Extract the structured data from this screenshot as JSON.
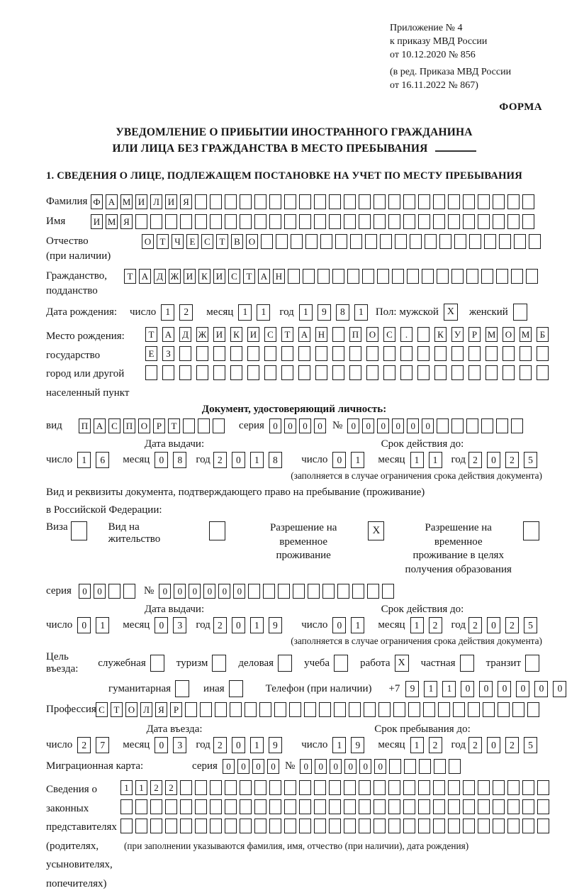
{
  "header": {
    "appendix_line1": "Приложение № 4",
    "appendix_line2": "к приказу МВД России",
    "appendix_line3": "от 10.12.2020 № 856",
    "amendment_line1": "(в ред. Приказа МВД России",
    "amendment_line2": "от 16.11.2022 № 867)",
    "forma": "ФОРМА"
  },
  "title": {
    "line1": "УВЕДОМЛЕНИЕ О ПРИБЫТИИ ИНОСТРАННОГО ГРАЖДАНИНА",
    "line2": "ИЛИ ЛИЦА БЕЗ ГРАЖДАНСТВА В МЕСТО ПРЕБЫВАНИЯ"
  },
  "section1_heading": "1. СВЕДЕНИЯ О ЛИЦЕ, ПОДЛЕЖАЩЕМ ПОСТАНОВКЕ НА УЧЕТ ПО МЕСТУ ПРЕБЫВАНИЯ",
  "labels": {
    "day": "число",
    "month": "месяц",
    "year": "год",
    "series": "серия",
    "number": "№"
  },
  "surname": {
    "label": "Фамилия",
    "cells": {
      "count": 30,
      "value": "ФАМИЛИЯ"
    }
  },
  "firstname": {
    "label": "Имя",
    "cells": {
      "count": 30,
      "value": "ИМЯ"
    }
  },
  "patronymic": {
    "label1": "Отчество",
    "label2": "(при наличии)",
    "cells": {
      "count": 27,
      "value": "ОТЧЕСТВО"
    }
  },
  "citizenship": {
    "label1": "Гражданство,",
    "label2": "подданство",
    "cells": {
      "count": 28,
      "value": "ТАДЖИКИСТАН"
    }
  },
  "birth_date": {
    "label": "Дата рождения:",
    "day": {
      "count": 2,
      "value": "12"
    },
    "month": {
      "count": 2,
      "value": "11"
    },
    "year": {
      "count": 4,
      "value": "1981"
    },
    "sex_label": "Пол: мужской",
    "male_box": {
      "count": 1,
      "value": "X"
    },
    "female_label": "женский",
    "female_box": {
      "count": 1,
      "value": ""
    }
  },
  "birth_place": {
    "label1": "Место рождения:",
    "label2": "государство",
    "label3": "город или другой",
    "label4": "населенный пункт",
    "row1": {
      "count": 24,
      "value": "ТАДЖИКИСТАН ПОС. КУРМОМБ"
    },
    "row2": {
      "count": 24,
      "value": "ЕЗ"
    },
    "row3": {
      "count": 24,
      "value": ""
    }
  },
  "identity_doc": {
    "heading": "Документ, удостоверяющий личность:",
    "type_label": "вид",
    "type": {
      "count": 10,
      "value": "ПАСПОРТ"
    },
    "series": {
      "count": 4,
      "value": "0000"
    },
    "number": {
      "count": 12,
      "value": "000000"
    },
    "issue_heading": "Дата выдачи:",
    "valid_heading": "Срок действия до:",
    "issue_day": {
      "count": 2,
      "value": "16"
    },
    "issue_month": {
      "count": 2,
      "value": "08"
    },
    "issue_year": {
      "count": 4,
      "value": "2018"
    },
    "valid_day": {
      "count": 2,
      "value": "01"
    },
    "valid_month": {
      "count": 2,
      "value": "11"
    },
    "valid_year": {
      "count": 4,
      "value": "2025"
    },
    "note": "(заполняется в случае ограничения срока действия документа)"
  },
  "residence_doc": {
    "line1": "Вид и реквизиты документа, подтверждающего право на пребывание (проживание)",
    "line2": "в Российской Федерации:",
    "visa_label": "Виза",
    "visa_box": {
      "count": 1,
      "value": ""
    },
    "permit_label": "Вид на жительство",
    "permit_box": {
      "count": 1,
      "value": ""
    },
    "temp_label1": "Разрешение на временное",
    "temp_label2": "проживание",
    "temp_box": {
      "count": 1,
      "value": "X"
    },
    "edu_label1": "Разрешение на временное",
    "edu_label2": "проживание в целях",
    "edu_label3": "получения образования",
    "edu_box": {
      "count": 1,
      "value": ""
    },
    "series": {
      "count": 4,
      "value": "00"
    },
    "number": {
      "count": 16,
      "value": "000000"
    },
    "issue_heading": "Дата выдачи:",
    "valid_heading": "Срок действия до:",
    "issue_day": {
      "count": 2,
      "value": "01"
    },
    "issue_month": {
      "count": 2,
      "value": "03"
    },
    "issue_year": {
      "count": 4,
      "value": "2019"
    },
    "valid_day": {
      "count": 2,
      "value": "01"
    },
    "valid_month": {
      "count": 2,
      "value": "12"
    },
    "valid_year": {
      "count": 4,
      "value": "2025"
    },
    "note": "(заполняется в случае ограничения срока действия документа)"
  },
  "purpose": {
    "label": "Цель въезда:",
    "official_label": "служебная",
    "official_box": {
      "count": 1,
      "value": ""
    },
    "tourism_label": "туризм",
    "tourism_box": {
      "count": 1,
      "value": ""
    },
    "business_label": "деловая",
    "business_box": {
      "count": 1,
      "value": ""
    },
    "study_label": "учеба",
    "study_box": {
      "count": 1,
      "value": ""
    },
    "work_label": "работа",
    "work_box": {
      "count": 1,
      "value": "X"
    },
    "private_label": "частная",
    "private_box": {
      "count": 1,
      "value": ""
    },
    "transit_label": "транзит",
    "transit_box": {
      "count": 1,
      "value": ""
    },
    "humanitarian_label": "гуманитарная",
    "humanitarian_box": {
      "count": 1,
      "value": ""
    },
    "other_label": "иная",
    "other_box": {
      "count": 1,
      "value": ""
    },
    "phone_label": "Телефон (при наличии)",
    "phone_prefix": "+7",
    "phone": {
      "count": 10,
      "value": "911000000"
    }
  },
  "profession": {
    "label": "Профессия",
    "cells": {
      "count": 30,
      "value": "СТОЛЯР"
    }
  },
  "entry": {
    "date_heading": "Дата въезда:",
    "stay_heading": "Срок пребывания до:",
    "entry_day": {
      "count": 2,
      "value": "27"
    },
    "entry_month": {
      "count": 2,
      "value": "03"
    },
    "entry_year": {
      "count": 4,
      "value": "2019"
    },
    "stay_day": {
      "count": 2,
      "value": "19"
    },
    "stay_month": {
      "count": 2,
      "value": "12"
    },
    "stay_year": {
      "count": 4,
      "value": "2025"
    }
  },
  "migration_card": {
    "label": "Миграционная карта:",
    "series": {
      "count": 4,
      "value": "0000"
    },
    "number": {
      "count": 11,
      "value": "000000"
    }
  },
  "guardians": {
    "label1": "Сведения о",
    "label2": "законных",
    "label3": "представителях",
    "label4": "(родителях,",
    "label5": "усыновителях,",
    "label6": "попечителях)",
    "row1": {
      "count": 29,
      "value": "1122"
    },
    "row2": {
      "count": 29,
      "value": ""
    },
    "row3": {
      "count": 29,
      "value": ""
    },
    "note": "(при заполнении указываются фамилия, имя, отчество (при наличии), дата рождения)"
  }
}
